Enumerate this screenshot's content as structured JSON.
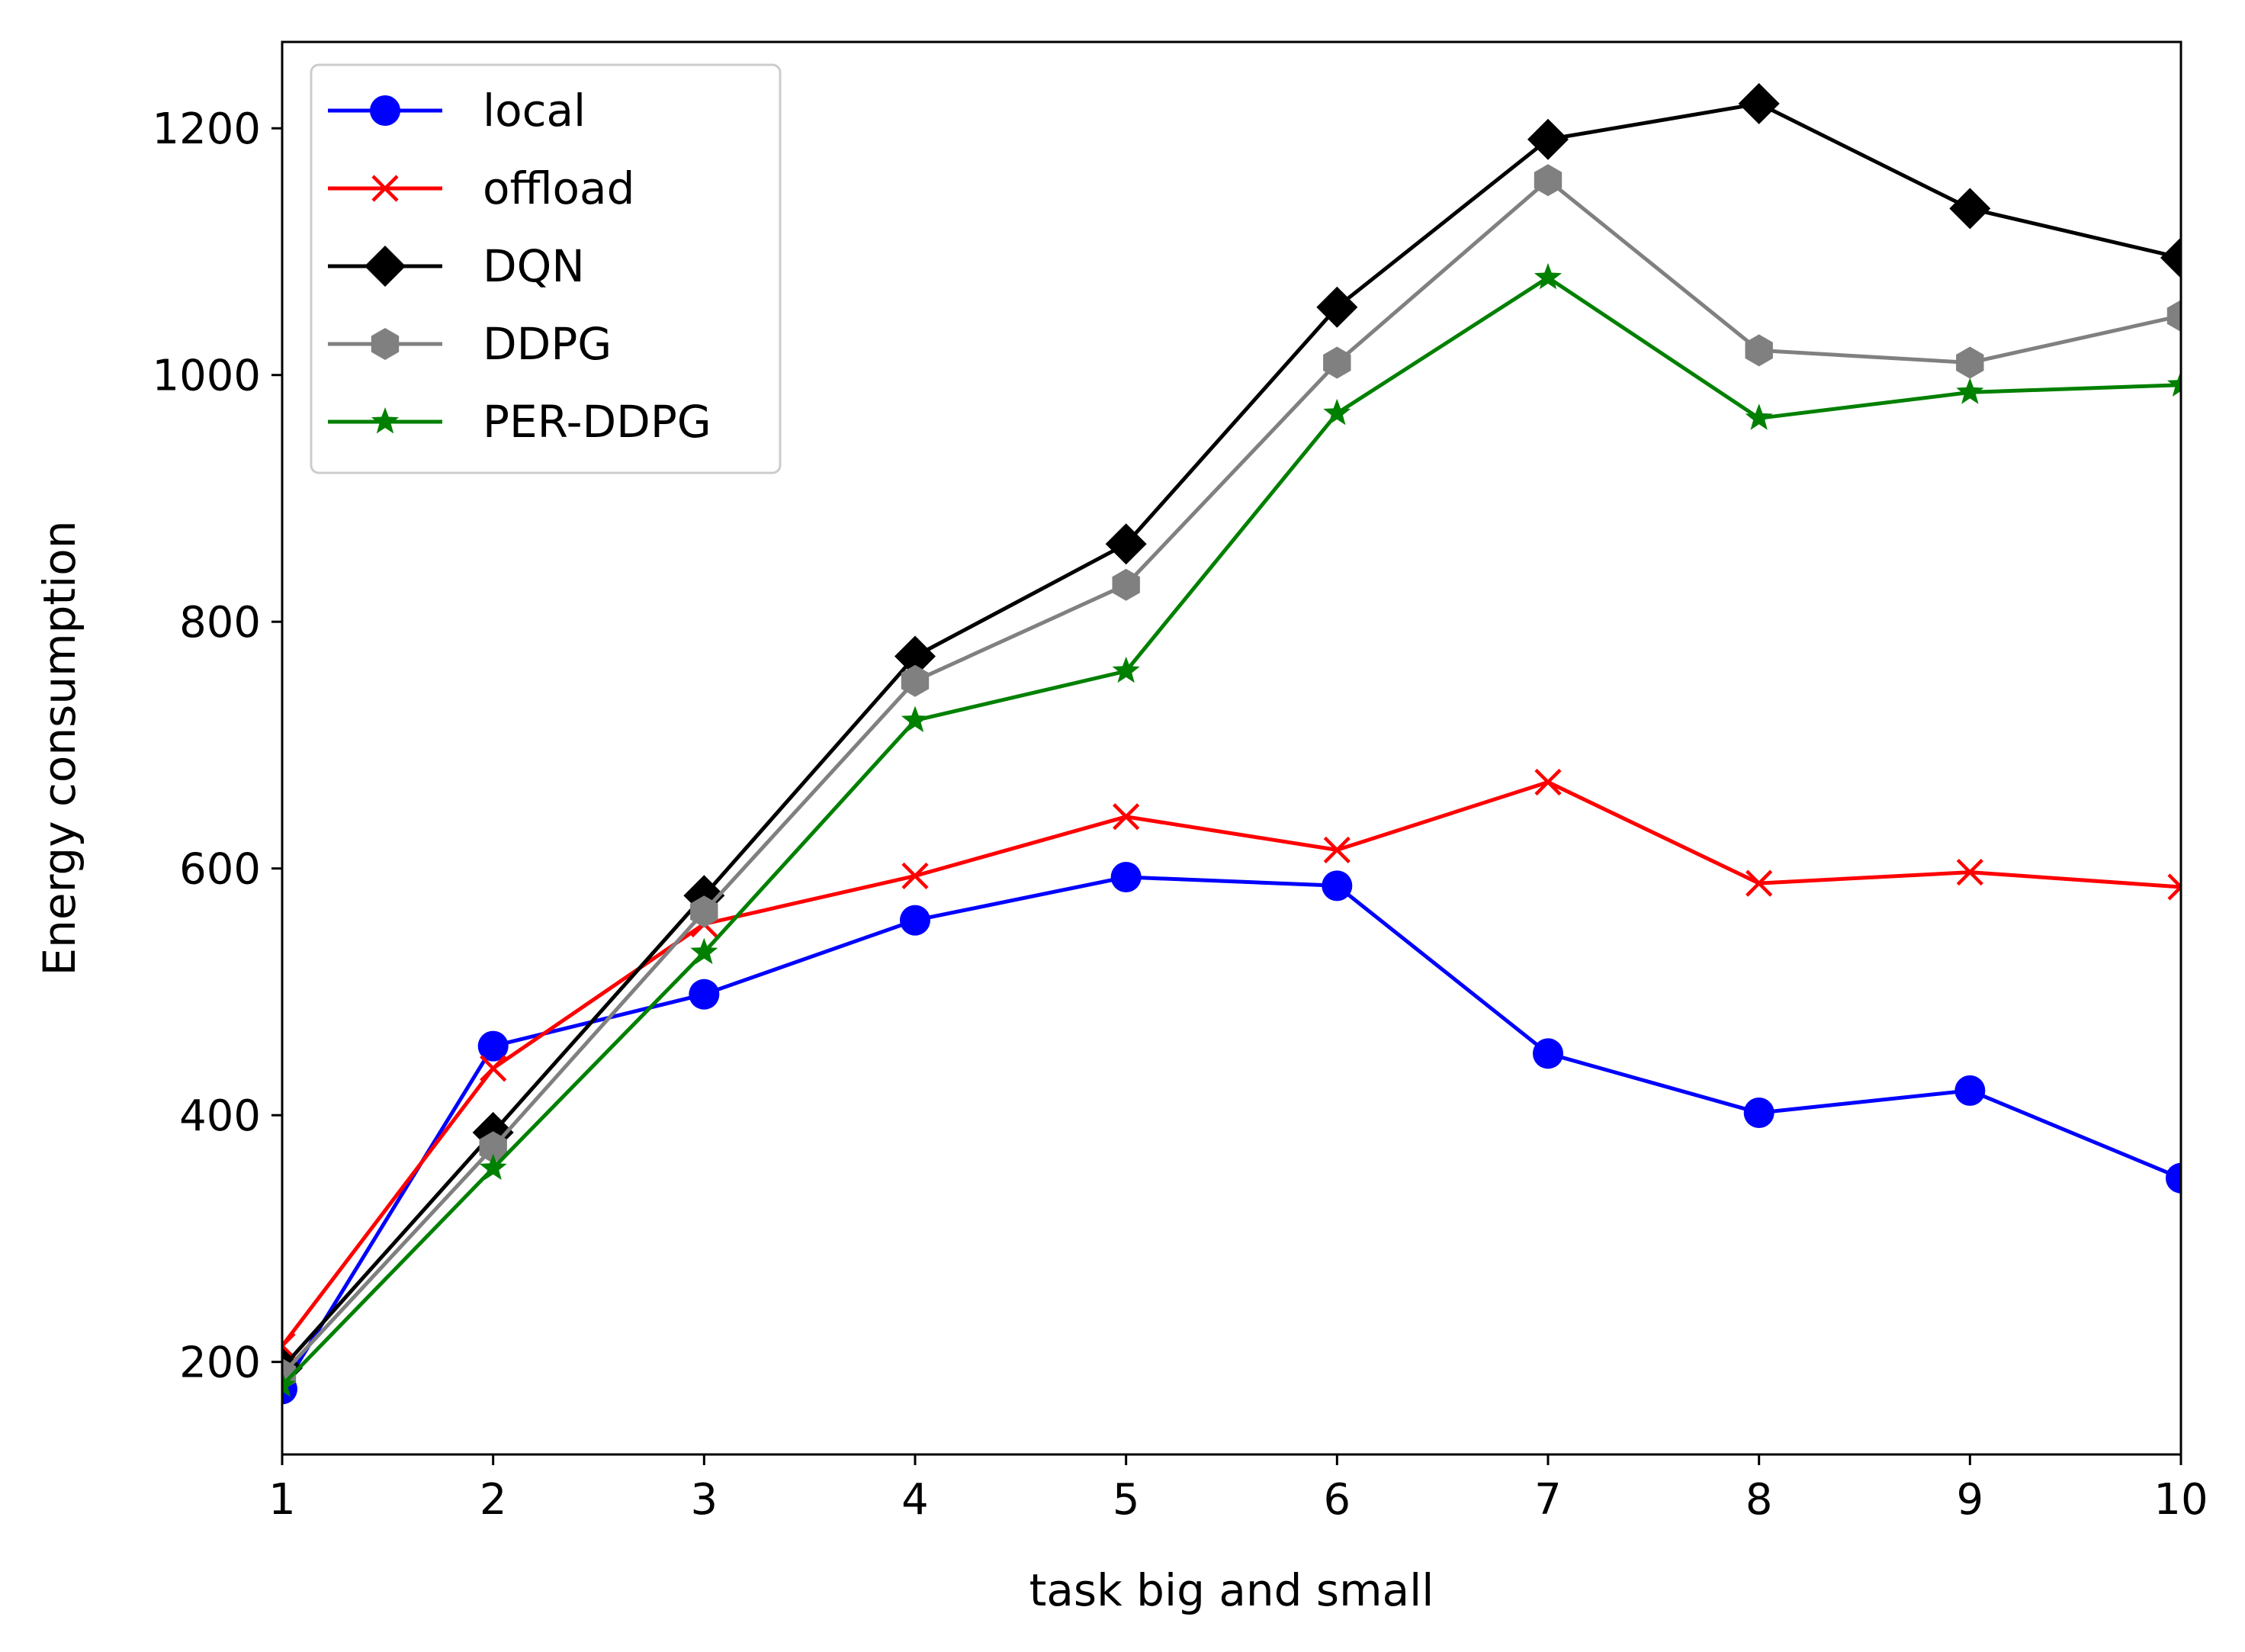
{
  "chart_data": {
    "type": "line",
    "xlabel": "task big and small",
    "ylabel": "Energy consumption",
    "xlim": [
      1,
      10
    ],
    "ylim": [
      125,
      1270
    ],
    "xticks": [
      1,
      2,
      3,
      4,
      5,
      6,
      7,
      8,
      9,
      10
    ],
    "yticks": [
      200,
      400,
      600,
      800,
      1000,
      1200
    ],
    "grid": false,
    "legend_position": "upper-left",
    "x": [
      1,
      2,
      3,
      4,
      5,
      6,
      7,
      8,
      9,
      10
    ],
    "series": [
      {
        "name": "local",
        "color": "#0000ff",
        "marker": "circle",
        "values": [
          178,
          456,
          498,
          558,
          593,
          586,
          450,
          402,
          420,
          349
        ]
      },
      {
        "name": "offload",
        "color": "#ff0000",
        "marker": "x",
        "values": [
          213,
          438,
          555,
          594,
          642,
          615,
          670,
          588,
          597,
          585
        ]
      },
      {
        "name": "DQN",
        "color": "#000000",
        "marker": "diamond",
        "values": [
          195,
          386,
          578,
          772,
          863,
          1055,
          1191,
          1220,
          1135,
          1095
        ]
      },
      {
        "name": "DDPG",
        "color": "#808080",
        "marker": "hexagon",
        "values": [
          190,
          374,
          565,
          752,
          830,
          1010,
          1158,
          1020,
          1010,
          1048
        ]
      },
      {
        "name": "PER-DDPG",
        "color": "#008000",
        "marker": "star",
        "values": [
          181,
          357,
          532,
          720,
          760,
          969,
          1079,
          965,
          986,
          992
        ]
      }
    ]
  }
}
